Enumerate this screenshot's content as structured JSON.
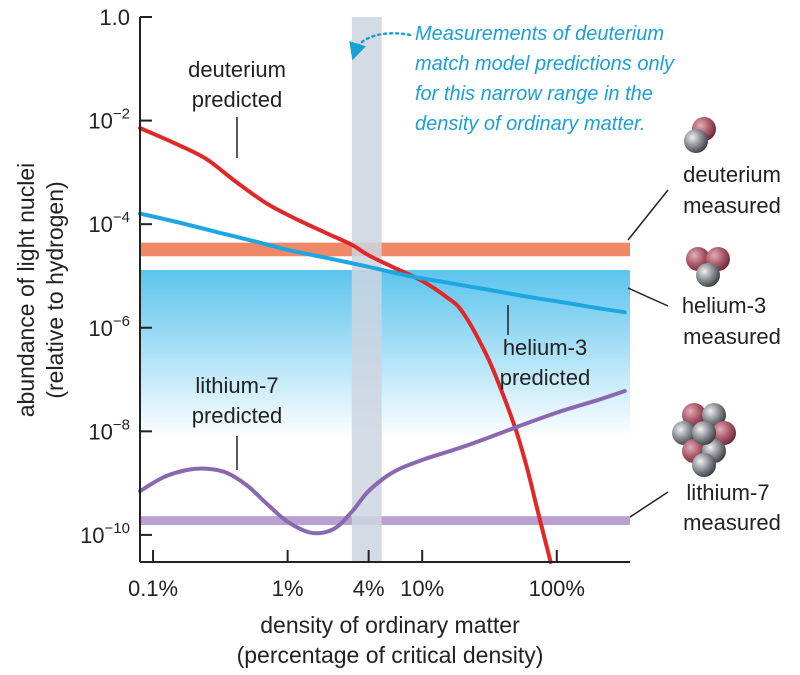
{
  "chart_data": {
    "type": "line",
    "x_scale": "log",
    "y_scale": "log",
    "xlabel_line1": "density of ordinary matter",
    "xlabel_line2": "(percentage of critical density)",
    "ylabel_line1": "abundance of light nuclei",
    "ylabel_line2": "(relative to hydrogen)",
    "xlim": [
      0.08,
      350
    ],
    "ylim": [
      3e-11,
      1.0
    ],
    "x_ticks": [
      {
        "value": 0.1,
        "label": "0.1%"
      },
      {
        "value": 1,
        "label": "1%"
      },
      {
        "value": 4,
        "label": "4%"
      },
      {
        "value": 10,
        "label": "10%"
      },
      {
        "value": 100,
        "label": "100%"
      }
    ],
    "y_ticks": [
      {
        "value": 1.0,
        "base": "1.0",
        "exp": ""
      },
      {
        "value": 0.01,
        "base": "10",
        "exp": "−2"
      },
      {
        "value": 0.0001,
        "base": "10",
        "exp": "−4"
      },
      {
        "value": 1e-06,
        "base": "10",
        "exp": "−6"
      },
      {
        "value": 1e-08,
        "base": "10",
        "exp": "−8"
      },
      {
        "value": 1e-10,
        "base": "10",
        "exp": "−10"
      }
    ],
    "series": [
      {
        "key": "deuterium",
        "color": "#e02828",
        "x": [
          0.08,
          0.15,
          0.25,
          0.4,
          0.7,
          1.2,
          2,
          3,
          4,
          6,
          10,
          15,
          20,
          30,
          40,
          50,
          60,
          70,
          80,
          90
        ],
        "y": [
          0.0072,
          0.0035,
          0.0018,
          0.0007,
          0.00025,
          0.00012,
          6.5e-05,
          4e-05,
          2.5e-05,
          1.5e-05,
          8e-06,
          4e-06,
          2e-06,
          3e-07,
          5e-08,
          1e-08,
          2e-09,
          4e-10,
          1e-10,
          3e-11
        ]
      },
      {
        "key": "helium3",
        "color": "#1ea6e0",
        "x": [
          0.08,
          0.15,
          0.3,
          0.6,
          1,
          2,
          4,
          8,
          15,
          30,
          60,
          120,
          200,
          320
        ],
        "y": [
          0.00016,
          0.00011,
          7e-05,
          4.5e-05,
          3.2e-05,
          2.2e-05,
          1.5e-05,
          1e-05,
          7.5e-06,
          5.5e-06,
          4e-06,
          3e-06,
          2.4e-06,
          2e-06
        ]
      },
      {
        "key": "lithium7",
        "color": "#8a68b0",
        "x": [
          0.08,
          0.12,
          0.18,
          0.25,
          0.35,
          0.5,
          0.7,
          1,
          1.5,
          2.2,
          3,
          4,
          6,
          10,
          20,
          50,
          100,
          200,
          320
        ],
        "y": [
          7e-10,
          1.3e-09,
          1.8e-09,
          1.9e-09,
          1.6e-09,
          9e-10,
          4e-10,
          1.8e-10,
          1.1e-10,
          1.3e-10,
          2.8e-10,
          7e-10,
          1.6e-09,
          2.8e-09,
          5e-09,
          1.2e-08,
          2.3e-08,
          4e-08,
          6e-08
        ]
      }
    ],
    "bands": [
      {
        "key": "deuterium-measured",
        "color": "#f08868",
        "y_low": 2.4e-05,
        "y_high": 4.4e-05
      },
      {
        "key": "lithium7-measured",
        "color": "#b8a0d0",
        "y_low": 1.55e-10,
        "y_high": 2.3e-10
      }
    ],
    "helium_region": {
      "color": "#5cc4ee",
      "y_top": 1.3e-05,
      "y_bottom": 7e-09
    },
    "highlight": {
      "x_low": 3.0,
      "x_high": 5.0,
      "color": "#ccd5e0"
    },
    "labels": {
      "deuterium_predicted": [
        "deuterium",
        "predicted"
      ],
      "helium3_predicted": [
        "helium-3",
        "predicted"
      ],
      "lithium7_predicted": [
        "lithium-7",
        "predicted"
      ],
      "deuterium_measured": [
        "deuterium",
        "measured"
      ],
      "helium3_measured": [
        "helium-3",
        "measured"
      ],
      "lithium7_measured": [
        "lithium-7",
        "measured"
      ]
    },
    "note": [
      "Measurements of deuterium",
      "match model predictions only",
      "for this narrow range in the",
      "density of ordinary matter."
    ],
    "note_color": "#1a9fd6",
    "icons": [
      {
        "key": "deuterium-atom-icon",
        "balls": [
          "red",
          "gray"
        ]
      },
      {
        "key": "helium3-atom-icon",
        "balls": [
          "red",
          "red",
          "gray"
        ]
      },
      {
        "key": "lithium7-atom-icon",
        "balls": [
          "red",
          "gray",
          "red",
          "gray",
          "red",
          "gray",
          "gray"
        ]
      }
    ]
  }
}
